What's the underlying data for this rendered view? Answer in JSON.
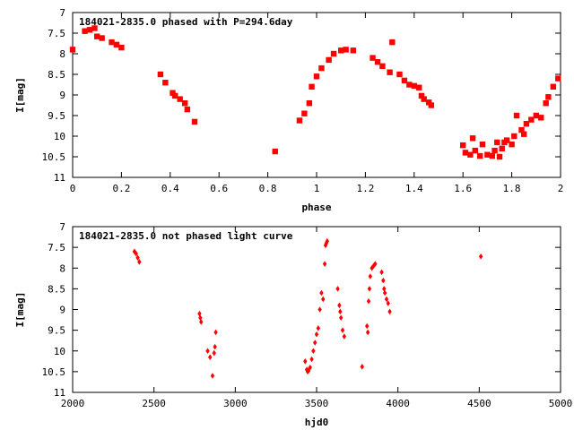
{
  "chart_data": [
    {
      "type": "scatter",
      "title": "184021-2835.0 phased with P=294.6day",
      "xlabel": "phase",
      "ylabel": "I[mag]",
      "xlim": [
        0,
        2
      ],
      "ylim": [
        11,
        7
      ],
      "y_inverted": true,
      "xticks": [
        "0",
        "0.2",
        "0.4",
        "0.6",
        "0.8",
        "1",
        "1.2",
        "1.4",
        "1.6",
        "1.8",
        "2"
      ],
      "yticks": [
        "7",
        "7.5",
        "8",
        "8.5",
        "9",
        "9.5",
        "10",
        "10.5",
        "11"
      ],
      "marker_color": "#ff0000",
      "series": [
        {
          "x": [
            0.0,
            0.05,
            0.07,
            0.09,
            0.1,
            0.12,
            0.16,
            0.18,
            0.2,
            0.36,
            0.38,
            0.41,
            0.42,
            0.44,
            0.46,
            0.47,
            0.5,
            0.83,
            0.93,
            0.95,
            0.97,
            0.98,
            1.0,
            1.02,
            1.05,
            1.07,
            1.1,
            1.12,
            1.15,
            1.23,
            1.25,
            1.27,
            1.3,
            1.31,
            1.34,
            1.36,
            1.38,
            1.4,
            1.42,
            1.43,
            1.44,
            1.46,
            1.47,
            1.6,
            1.61,
            1.63,
            1.64,
            1.65,
            1.67,
            1.68,
            1.7,
            1.72,
            1.73,
            1.74,
            1.75,
            1.76,
            1.77,
            1.78,
            1.8,
            1.81,
            1.82,
            1.84,
            1.85,
            1.86,
            1.88,
            1.9,
            1.92,
            1.94,
            1.95,
            1.97,
            1.99
          ],
          "y": [
            7.9,
            7.45,
            7.42,
            7.38,
            7.58,
            7.62,
            7.72,
            7.78,
            7.85,
            8.5,
            8.7,
            8.95,
            9.02,
            9.1,
            9.2,
            9.35,
            9.65,
            10.37,
            9.62,
            9.45,
            9.2,
            8.8,
            8.55,
            8.35,
            8.15,
            8.0,
            7.92,
            7.9,
            7.92,
            8.1,
            8.2,
            8.3,
            8.45,
            7.72,
            8.5,
            8.65,
            8.75,
            8.78,
            8.82,
            9.02,
            9.1,
            9.18,
            9.25,
            10.22,
            10.4,
            10.45,
            10.05,
            10.35,
            10.48,
            10.2,
            10.45,
            10.48,
            10.35,
            10.15,
            10.5,
            10.3,
            10.15,
            10.1,
            10.2,
            10.0,
            9.5,
            9.85,
            9.95,
            9.7,
            9.6,
            9.5,
            9.55,
            9.2,
            9.05,
            8.8,
            8.6
          ]
        }
      ]
    },
    {
      "type": "scatter",
      "title": "184021-2835.0 not phased light curve",
      "xlabel": "hjd0",
      "ylabel": "I[mag]",
      "xlim": [
        2000,
        5000
      ],
      "ylim": [
        11,
        7
      ],
      "y_inverted": true,
      "xticks": [
        "2000",
        "2500",
        "3000",
        "3500",
        "4000",
        "4500",
        "5000"
      ],
      "yticks": [
        "7",
        "7.5",
        "8",
        "8.5",
        "9",
        "9.5",
        "10",
        "10.5",
        "11"
      ],
      "marker_color": "#ff0000",
      "series": [
        {
          "x": [
            2380,
            2390,
            2400,
            2410,
            2780,
            2785,
            2790,
            2830,
            2845,
            2860,
            2870,
            2875,
            2880,
            3430,
            3440,
            3445,
            3450,
            3460,
            3470,
            3480,
            3490,
            3500,
            3510,
            3520,
            3530,
            3540,
            3550,
            3555,
            3560,
            3565,
            3630,
            3640,
            3645,
            3650,
            3660,
            3670,
            3780,
            3810,
            3815,
            3820,
            3825,
            3830,
            3840,
            3850,
            3860,
            3900,
            3910,
            3915,
            3920,
            3930,
            3940,
            3950,
            4510
          ],
          "y": [
            7.6,
            7.65,
            7.75,
            7.85,
            9.1,
            9.2,
            9.3,
            10.0,
            10.15,
            10.6,
            10.05,
            9.9,
            9.55,
            10.25,
            10.45,
            10.5,
            10.48,
            10.4,
            10.2,
            10.0,
            9.8,
            9.6,
            9.45,
            9.0,
            8.6,
            8.75,
            7.9,
            7.45,
            7.4,
            7.35,
            8.5,
            8.9,
            9.05,
            9.2,
            9.5,
            9.65,
            10.38,
            9.4,
            9.55,
            8.8,
            8.5,
            8.2,
            8.0,
            7.95,
            7.9,
            8.1,
            8.3,
            8.5,
            8.6,
            8.75,
            8.85,
            9.05,
            7.72
          ]
        }
      ]
    }
  ]
}
